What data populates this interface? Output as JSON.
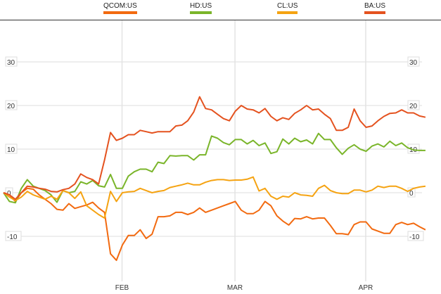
{
  "chart_data": {
    "type": "line",
    "title": "",
    "xlabel": "",
    "ylabel": "",
    "ylim": [
      -20,
      35
    ],
    "yticks": [
      30,
      20,
      10,
      0,
      -10
    ],
    "ytick_labels": [
      "30",
      "20",
      "10",
      "0",
      "-10"
    ],
    "xtick_labels": [
      "FEB",
      "MAR",
      "APR"
    ],
    "xtick_index": [
      20,
      39,
      61
    ],
    "grid": true,
    "legend_position": "top",
    "n_points": 72,
    "series": [
      {
        "name": "QCOM:US",
        "color": "#f26a10",
        "values": [
          0,
          -0.5,
          -2,
          0,
          1,
          0.8,
          -0.5,
          -1.5,
          -2.5,
          -3.8,
          -4,
          -2.5,
          -3.6,
          -3.2,
          -2.8,
          -2.2,
          -3.5,
          -4.5,
          -14,
          -15.5,
          -12,
          -9.8,
          -9.8,
          -8.5,
          -10.5,
          -9.5,
          -5.5,
          -5.5,
          -5.3,
          -4.5,
          -4.5,
          -5,
          -4.5,
          -3.5,
          -4.5,
          -4,
          -3.5,
          -3,
          -2.5,
          -2,
          -4,
          -4.8,
          -4.8,
          -4,
          -2,
          -3,
          -5.3,
          -6.5,
          -7.4,
          -5.9,
          -6,
          -5.5,
          -6,
          -5.8,
          -5.8,
          -7.5,
          -9.4,
          -9.4,
          -9.6,
          -7.3,
          -6.7,
          -6.7,
          -8.3,
          -8.8,
          -9.3,
          -9.3,
          -7.3,
          -6.8,
          -7.3,
          -7,
          -7.8,
          -8.5
        ]
      },
      {
        "name": "HD:US",
        "color": "#7ab52a",
        "values": [
          0,
          -2,
          -2.3,
          1,
          3,
          1.5,
          1,
          0.5,
          -0.5,
          -2.2,
          0.5,
          0,
          0.3,
          2.5,
          2,
          2.8,
          1.6,
          1.3,
          4.2,
          1,
          1,
          3.8,
          4.8,
          5.4,
          5.4,
          4.8,
          7,
          6.7,
          8.5,
          8.4,
          8.5,
          8.5,
          7.5,
          8.7,
          8.7,
          13,
          12.5,
          11.5,
          11,
          12.2,
          12.2,
          11.2,
          12,
          10.8,
          11.4,
          9,
          9.4,
          12.3,
          11.2,
          12.5,
          11.7,
          12.1,
          11.2,
          13.6,
          12.2,
          12.2,
          10.3,
          8.8,
          10.2,
          11,
          10,
          9.5,
          10.7,
          11.2,
          10.5,
          11.8,
          10.8,
          11.4,
          10.3,
          9.8,
          9.7,
          9.7
        ]
      },
      {
        "name": "CL:US",
        "color": "#f5a312",
        "values": [
          0,
          -1,
          -1.8,
          -1,
          0.3,
          -0.5,
          -1,
          -1.5,
          -0.8,
          -1.5,
          0.5,
          0,
          -1.3,
          0.2,
          -3,
          -4,
          -5,
          -5.8,
          0.3,
          -2,
          0,
          0.2,
          0.3,
          1,
          0.5,
          0,
          0.3,
          0.5,
          1.2,
          1.5,
          1.8,
          2.2,
          1.8,
          1.8,
          2.4,
          2.8,
          3,
          3,
          2.8,
          2.9,
          2.9,
          3.1,
          3.6,
          0.4,
          1,
          -0.8,
          -1.5,
          -0.8,
          -1,
          0,
          -0.5,
          -0.6,
          -0.8,
          1,
          1.7,
          0.5,
          0,
          -0.2,
          -0.2,
          0.6,
          0.6,
          0.2,
          0.6,
          1.5,
          1.2,
          1.5,
          1.5,
          1,
          0.3,
          1,
          1.3,
          1.5
        ]
      },
      {
        "name": "BA:US",
        "color": "#e4521f",
        "values": [
          0,
          -0.5,
          -1.5,
          0,
          1.5,
          1.3,
          1,
          0.8,
          0.3,
          0.2,
          0.7,
          1,
          2,
          4.3,
          3.5,
          3,
          2,
          7.5,
          13.8,
          12,
          12.5,
          13.3,
          13.3,
          14.3,
          14,
          13.7,
          14,
          14,
          14,
          15.3,
          15.5,
          16.5,
          18.5,
          22,
          19.3,
          19,
          18,
          17,
          16.5,
          18.7,
          20,
          19.2,
          19,
          18.3,
          19.3,
          17.5,
          16.5,
          17.2,
          16.8,
          18.2,
          19,
          20,
          19,
          19.2,
          18,
          17,
          14.3,
          14.3,
          15,
          19.2,
          16.5,
          15,
          15.3,
          16.5,
          17.5,
          18.2,
          18.3,
          19,
          18.3,
          18.3,
          17.6,
          17.3
        ]
      }
    ]
  }
}
